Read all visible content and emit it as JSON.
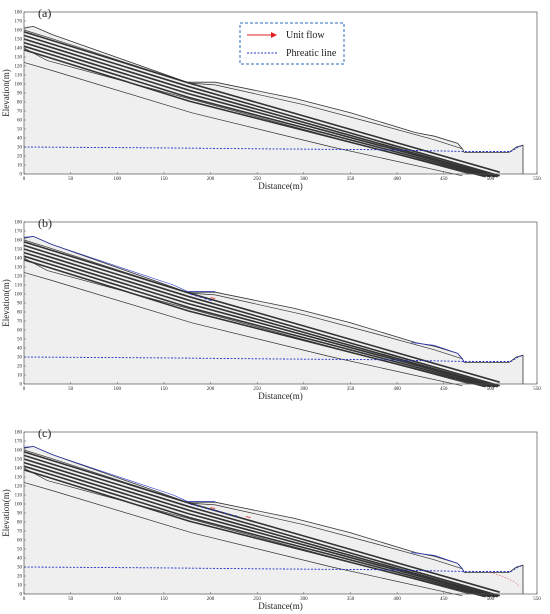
{
  "figure": {
    "xlabel": "Distance(m)",
    "ylabel": "Elevation(m)",
    "xlim": [
      0,
      550
    ],
    "ylim": [
      0,
      180
    ],
    "x_ticks": [
      0,
      50,
      100,
      150,
      200,
      250,
      300,
      350,
      400,
      450,
      500,
      550
    ],
    "y_ticks": [
      0,
      10,
      20,
      30,
      40,
      50,
      60,
      70,
      80,
      90,
      100,
      110,
      120,
      130,
      140,
      150,
      160,
      170,
      180
    ],
    "colors": {
      "slope_fill": "#efefef",
      "outline": "#333333",
      "phreatic_line": "#2233cc",
      "unit_flow": "#e02020",
      "legend_border": "#2a6cb8"
    },
    "legend": {
      "unit_flow": "Unit flow",
      "phreatic_line": "Phreatic line"
    },
    "panels": [
      {
        "label": "(a)",
        "show_legend": true,
        "flow_zone": "none"
      },
      {
        "label": "(b)",
        "show_legend": false,
        "flow_zone": "small"
      },
      {
        "label": "(c)",
        "show_legend": false,
        "flow_zone": "large"
      }
    ]
  }
}
